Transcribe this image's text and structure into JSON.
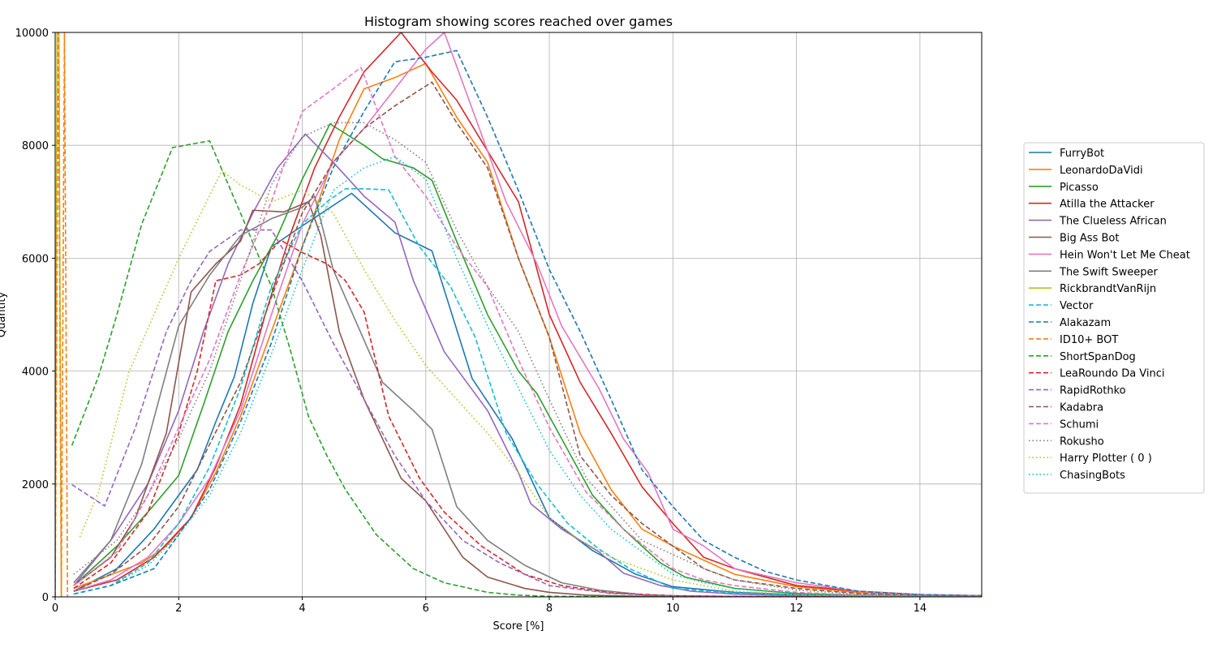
{
  "chart_data": {
    "type": "line",
    "title": "Histogram showing scores reached over games",
    "xlabel": "Score [%]",
    "ylabel": "Quantity",
    "xlim": [
      0,
      15
    ],
    "ylim": [
      0,
      10000
    ],
    "xticks": [
      0,
      2,
      4,
      6,
      8,
      10,
      12,
      14
    ],
    "yticks": [
      0,
      2000,
      4000,
      6000,
      8000,
      10000
    ],
    "grid": true,
    "legend_position": "right-center",
    "series": [
      {
        "name": "FurryBot",
        "color": "#1f77b4",
        "dash": "solid",
        "x": [
          0.3,
          1.0,
          1.6,
          2.0,
          2.3,
          2.6,
          2.9,
          3.2,
          3.5,
          3.9,
          4.8,
          5.5,
          6.1,
          6.75,
          7.4,
          8.0,
          8.7,
          9.4,
          10.0,
          11.0,
          12.0,
          13.0,
          14.0,
          15.0
        ],
        "y": [
          100,
          500,
          1200,
          1800,
          2250,
          3100,
          3900,
          5200,
          6200,
          6500,
          7150,
          6450,
          6130,
          3870,
          2800,
          1400,
          820,
          400,
          180,
          80,
          40,
          20,
          10,
          5
        ]
      },
      {
        "name": "LeonardoDaVidi",
        "color": "#ff7f0e",
        "dash": "solid",
        "x": [
          0.3,
          0.8,
          1.4,
          1.8,
          2.2,
          2.6,
          3.0,
          3.4,
          3.8,
          4.2,
          4.6,
          5.0,
          5.5,
          6.0,
          6.5,
          7.0,
          7.5,
          8.0,
          8.5,
          9.0,
          9.5,
          10.0,
          11.0,
          12.0,
          13.0,
          14.0,
          15.0
        ],
        "y": [
          150,
          350,
          600,
          900,
          1400,
          2200,
          3200,
          4400,
          5600,
          6800,
          8100,
          9000,
          9200,
          9450,
          8500,
          7700,
          6000,
          4600,
          2900,
          1900,
          1200,
          900,
          400,
          180,
          80,
          40,
          20
        ]
      },
      {
        "name": "Picasso",
        "color": "#2ca02c",
        "dash": "solid",
        "x": [
          0.3,
          1.0,
          1.5,
          2.0,
          2.4,
          2.8,
          3.2,
          3.6,
          4.0,
          4.45,
          5.0,
          5.3,
          5.8,
          6.1,
          6.5,
          7.0,
          7.5,
          7.8,
          8.2,
          8.7,
          9.2,
          9.8,
          10.2,
          11.0,
          12.0,
          13.0,
          14.0,
          15.0
        ],
        "y": [
          200,
          900,
          1500,
          2150,
          3400,
          4700,
          5600,
          6400,
          7400,
          8380,
          8000,
          7760,
          7600,
          7380,
          6300,
          5000,
          4000,
          3600,
          2800,
          1800,
          1200,
          600,
          350,
          150,
          60,
          30,
          10,
          5
        ]
      },
      {
        "name": "Atilla the Attacker",
        "color": "#d62728",
        "dash": "solid",
        "x": [
          0.3,
          1.0,
          1.6,
          2.2,
          2.6,
          3.0,
          3.4,
          3.8,
          4.2,
          4.6,
          5.0,
          5.6,
          6.1,
          6.5,
          7.0,
          7.5,
          8.0,
          8.5,
          9.0,
          9.5,
          10.0,
          10.5,
          11.0,
          12.0,
          13.0,
          14.0,
          15.0
        ],
        "y": [
          100,
          300,
          700,
          1400,
          2300,
          3400,
          5000,
          6400,
          7600,
          8500,
          9300,
          10000,
          9300,
          8800,
          7900,
          7000,
          5000,
          3800,
          2900,
          1950,
          1300,
          700,
          500,
          200,
          100,
          40,
          20
        ]
      },
      {
        "name": "The Clueless African",
        "color": "#9467bd",
        "dash": "solid",
        "x": [
          0.3,
          0.9,
          1.5,
          2.0,
          2.4,
          2.8,
          3.2,
          3.6,
          4.05,
          4.5,
          5.0,
          5.5,
          5.8,
          6.3,
          7.0,
          7.5,
          7.7,
          8.2,
          8.8,
          9.2,
          9.8,
          10.3,
          11.0,
          12.0,
          13.0,
          14.0,
          15.0
        ],
        "y": [
          200,
          1000,
          2000,
          3300,
          4700,
          5900,
          6800,
          7600,
          8200,
          7700,
          7100,
          6640,
          5600,
          4340,
          3300,
          2200,
          1650,
          1200,
          800,
          420,
          200,
          100,
          50,
          20,
          10,
          5,
          2
        ]
      },
      {
        "name": "Big Ass Bot",
        "color": "#8c564b",
        "dash": "solid",
        "x": [
          0.3,
          0.9,
          1.3,
          1.8,
          2.2,
          2.6,
          3.0,
          3.2,
          3.7,
          4.1,
          4.3,
          4.6,
          5.0,
          5.6,
          6.0,
          6.6,
          7.0,
          7.6,
          8.0,
          8.6,
          9.2,
          10.0,
          11.0,
          12.0,
          13.0,
          14.0,
          15.0
        ],
        "y": [
          200,
          700,
          1400,
          2900,
          5400,
          5900,
          6300,
          6850,
          6820,
          7000,
          6400,
          4700,
          3500,
          2100,
          1700,
          700,
          350,
          150,
          80,
          30,
          15,
          5,
          2,
          1,
          0,
          0,
          0
        ]
      },
      {
        "name": "Hein Won't Let Me Cheat",
        "color": "#e377c2",
        "dash": "solid",
        "x": [
          0.3,
          0.9,
          1.5,
          2.0,
          2.5,
          3.0,
          3.5,
          4.0,
          4.5,
          5.0,
          5.5,
          6.0,
          6.3,
          6.8,
          7.3,
          7.8,
          8.2,
          8.8,
          9.2,
          9.6,
          10.0,
          10.5,
          11.0,
          12.0,
          13.0,
          14.0,
          15.0
        ],
        "y": [
          100,
          300,
          700,
          1300,
          2100,
          3300,
          5000,
          6600,
          7700,
          8300,
          9000,
          9700,
          10000,
          8500,
          7000,
          5900,
          4800,
          3700,
          2800,
          2200,
          1200,
          900,
          500,
          250,
          100,
          40,
          20
        ]
      },
      {
        "name": "The Swift Sweeper",
        "color": "#7f7f7f",
        "dash": "solid",
        "x": [
          0.3,
          0.9,
          1.4,
          2.0,
          2.5,
          3.0,
          3.5,
          4.0,
          4.2,
          4.5,
          4.8,
          5.3,
          5.8,
          6.1,
          6.5,
          7.0,
          7.6,
          8.2,
          8.8,
          9.5,
          10.0,
          11.0,
          12.0,
          13.0,
          14.0,
          15.0
        ],
        "y": [
          250,
          1000,
          2350,
          4800,
          5700,
          6400,
          6700,
          6900,
          7100,
          5800,
          5050,
          3800,
          3300,
          2970,
          1600,
          1000,
          560,
          250,
          120,
          40,
          20,
          8,
          4,
          2,
          1,
          0
        ]
      },
      {
        "name": "RickbrandtVanRijn",
        "color": "#bcbd22",
        "dash": "solid",
        "x": [
          0.0,
          0.03,
          0.06,
          0.1
        ],
        "y": [
          0,
          10000,
          10000,
          0
        ]
      },
      {
        "name": "Vector",
        "color": "#17becf",
        "dash": "dashed",
        "x": [
          0.3,
          0.9,
          1.5,
          2.0,
          2.5,
          3.0,
          3.5,
          4.0,
          4.4,
          4.7,
          5.0,
          5.4,
          5.9,
          6.4,
          6.8,
          7.3,
          7.8,
          8.3,
          8.8,
          9.3,
          10.0,
          11.0,
          12.0,
          13.0,
          14.0,
          15.0
        ],
        "y": [
          50,
          200,
          600,
          1300,
          2300,
          3700,
          5500,
          6600,
          7000,
          7230,
          7230,
          7210,
          6200,
          5500,
          4600,
          2900,
          2000,
          1300,
          850,
          500,
          150,
          70,
          30,
          15,
          5,
          2
        ]
      },
      {
        "name": "Alakazam",
        "color": "#1f77b4",
        "dash": "dashed",
        "x": [
          0.3,
          0.9,
          1.6,
          2.0,
          2.5,
          3.0,
          3.5,
          4.0,
          4.5,
          5.0,
          5.5,
          6.0,
          6.5,
          7.0,
          7.5,
          8.0,
          8.5,
          9.0,
          9.5,
          10.0,
          10.5,
          11.0,
          11.5,
          12.0,
          13.0,
          14.0,
          15.0
        ],
        "y": [
          50,
          200,
          500,
          1100,
          1900,
          3100,
          4500,
          6200,
          7600,
          8600,
          9480,
          9560,
          9680,
          8500,
          7200,
          5800,
          4700,
          3500,
          2250,
          1600,
          1000,
          700,
          450,
          300,
          100,
          40,
          20
        ]
      },
      {
        "name": "ID10+ BOT",
        "color": "#ff7f0e",
        "dash": "dashed",
        "x": [
          0.0,
          0.05,
          0.1,
          0.15,
          0.2
        ],
        "y": [
          0,
          10000,
          0,
          10000,
          0
        ]
      },
      {
        "name": "ShortSpanDog",
        "color": "#2ca02c",
        "dash": "dashed",
        "x": [
          0.27,
          0.7,
          1.0,
          1.4,
          1.9,
          2.5,
          3.0,
          3.5,
          3.8,
          4.1,
          4.4,
          4.7,
          5.2,
          5.8,
          6.3,
          7.0,
          7.5,
          8.0,
          9.0,
          10.0,
          11.0,
          12.0,
          13.0,
          14.0,
          15.0
        ],
        "y": [
          2680,
          3900,
          5000,
          6600,
          7960,
          8080,
          6800,
          5500,
          4400,
          3200,
          2500,
          1900,
          1100,
          500,
          250,
          80,
          30,
          10,
          2,
          1,
          0,
          0,
          0,
          0,
          0
        ]
      },
      {
        "name": "LeaRoundo Da Vinci",
        "color": "#d62728",
        "dash": "dashed",
        "x": [
          0.3,
          0.9,
          1.5,
          2.0,
          2.3,
          2.6,
          3.0,
          3.3,
          3.65,
          4.0,
          4.4,
          4.7,
          5.0,
          5.4,
          5.9,
          6.3,
          6.9,
          7.6,
          8.2,
          9.0,
          10.0,
          11.0,
          12.0,
          13.0,
          14.0,
          15.0
        ],
        "y": [
          150,
          600,
          1500,
          2900,
          4000,
          5600,
          5700,
          5900,
          6320,
          6100,
          5900,
          5600,
          5050,
          3200,
          2100,
          1500,
          900,
          400,
          200,
          70,
          20,
          8,
          3,
          1,
          0,
          0
        ]
      },
      {
        "name": "RapidRothko",
        "color": "#9467bd",
        "dash": "dashed",
        "x": [
          0.27,
          0.8,
          1.3,
          1.8,
          2.2,
          2.5,
          3.0,
          3.5,
          4.0,
          4.5,
          5.0,
          5.5,
          6.0,
          6.6,
          7.2,
          8.0,
          9.0,
          10.0,
          11.0,
          12.0,
          13.0,
          14.0,
          15.0
        ],
        "y": [
          1990,
          1610,
          3000,
          4700,
          5600,
          6120,
          6500,
          6500,
          5600,
          4500,
          3500,
          2500,
          1700,
          1000,
          600,
          200,
          60,
          15,
          5,
          2,
          1,
          0,
          0
        ]
      },
      {
        "name": "Kadabra",
        "color": "#8c564b",
        "dash": "dashed",
        "x": [
          0.3,
          0.9,
          1.5,
          2.0,
          2.5,
          3.0,
          3.5,
          4.0,
          4.5,
          5.0,
          5.5,
          6.1,
          6.5,
          7.0,
          7.5,
          8.0,
          8.5,
          9.0,
          9.5,
          10.0,
          10.5,
          11.0,
          12.0,
          13.0,
          14.0,
          15.0
        ],
        "y": [
          100,
          400,
          900,
          1600,
          2700,
          3800,
          5300,
          6800,
          7700,
          8300,
          8700,
          9120,
          8400,
          7600,
          6000,
          4600,
          2500,
          1800,
          1300,
          900,
          500,
          300,
          150,
          60,
          20,
          10
        ]
      },
      {
        "name": "Schumi",
        "color": "#e377c2",
        "dash": "dashed",
        "x": [
          0.3,
          1.0,
          1.5,
          2.0,
          2.5,
          3.0,
          3.5,
          4.0,
          4.5,
          4.95,
          5.5,
          6.0,
          6.5,
          7.0,
          7.5,
          8.0,
          8.6,
          9.2,
          10.0,
          10.5,
          11.0,
          12.0,
          13.0,
          14.0,
          15.0
        ],
        "y": [
          200,
          800,
          1800,
          3000,
          4200,
          5700,
          7000,
          8600,
          9000,
          9380,
          7800,
          7100,
          6200,
          5500,
          4200,
          3000,
          1850,
          1200,
          500,
          300,
          200,
          80,
          30,
          10,
          5
        ]
      },
      {
        "name": "Rokusho",
        "color": "#7f7f7f",
        "dash": "dotted",
        "x": [
          0.3,
          1.0,
          1.5,
          2.0,
          2.5,
          3.0,
          3.5,
          4.0,
          4.5,
          5.0,
          5.5,
          6.0,
          6.5,
          7.0,
          7.5,
          8.0,
          8.6,
          9.5,
          10.5,
          11.0,
          12.0,
          13.0,
          14.0,
          15.0
        ],
        "y": [
          400,
          1000,
          1800,
          2800,
          4000,
          5600,
          7300,
          8150,
          8400,
          8400,
          8100,
          7700,
          6500,
          5500,
          4700,
          3500,
          2100,
          1000,
          500,
          300,
          120,
          50,
          20,
          10
        ]
      },
      {
        "name": "Harry Plotter ( 0 )",
        "color": "#bcbd22",
        "dash": "dotted",
        "x": [
          0.4,
          0.7,
          1.2,
          2.0,
          2.7,
          3.0,
          3.5,
          4.0,
          4.5,
          5.0,
          5.5,
          6.0,
          6.5,
          7.0,
          7.5,
          8.0,
          8.5,
          9.0,
          10.0,
          11.0,
          12.0,
          13.0,
          14.0,
          15.0
        ],
        "y": [
          1060,
          1850,
          4000,
          6000,
          7550,
          7300,
          7000,
          7200,
          6800,
          5800,
          4900,
          4100,
          3500,
          2900,
          2200,
          1400,
          1000,
          700,
          300,
          100,
          40,
          15,
          5,
          2
        ]
      },
      {
        "name": "ChasingBots",
        "color": "#17becf",
        "dash": "dotted",
        "x": [
          0.3,
          0.9,
          1.5,
          2.0,
          2.5,
          3.0,
          3.5,
          4.0,
          4.5,
          5.0,
          5.5,
          6.0,
          6.5,
          7.0,
          7.5,
          8.0,
          8.5,
          9.0,
          9.5,
          10.0,
          10.5,
          11.0,
          12.0,
          13.0,
          14.0,
          15.0
        ],
        "y": [
          50,
          200,
          550,
          1100,
          1800,
          2900,
          4300,
          5800,
          7200,
          7600,
          7800,
          7400,
          6000,
          4800,
          3700,
          2600,
          1800,
          1200,
          800,
          400,
          250,
          150,
          60,
          20,
          8,
          3
        ]
      }
    ]
  }
}
